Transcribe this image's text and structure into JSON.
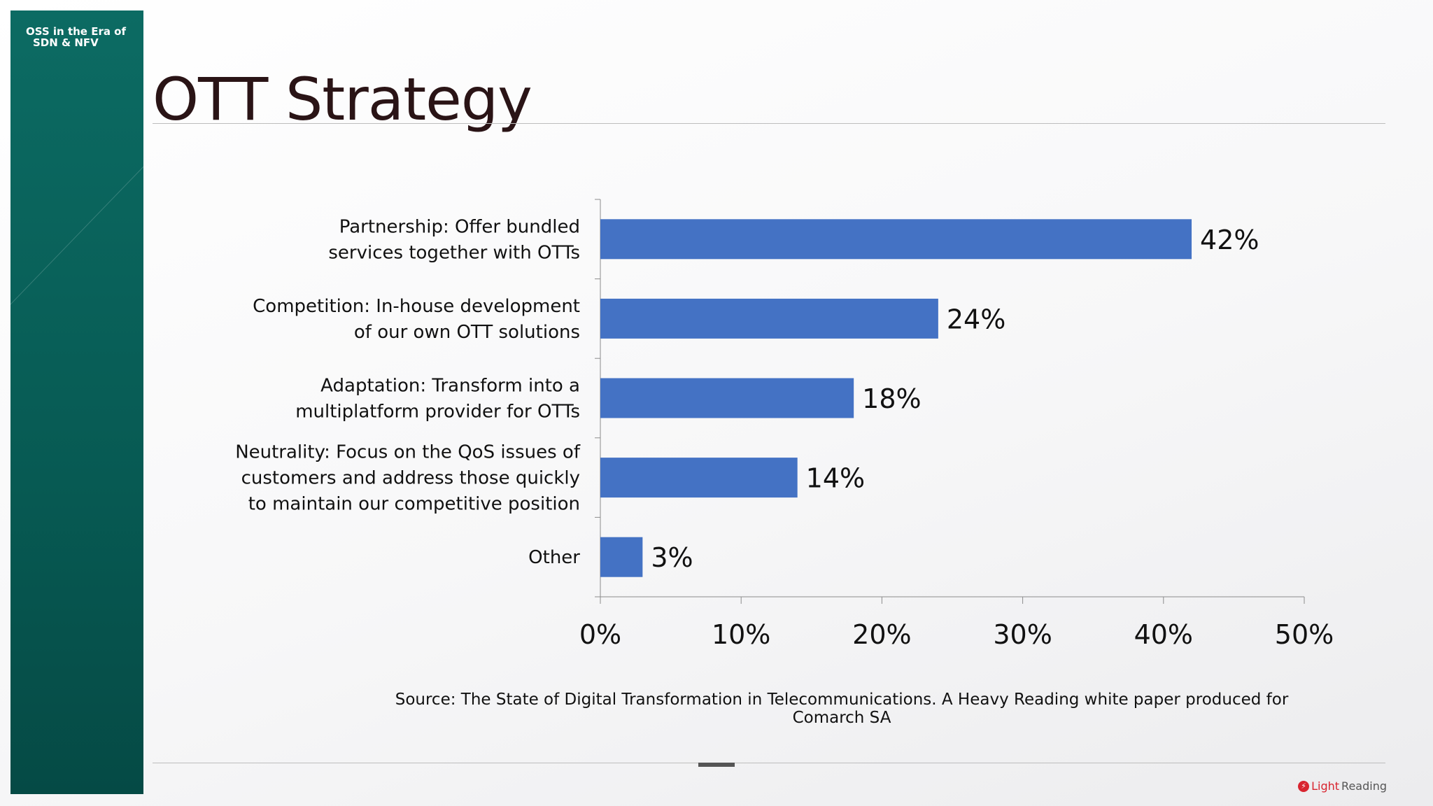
{
  "sidebar": {
    "title_line1": "OSS in the Era of",
    "title_line2": "SDN & NFV"
  },
  "slide": {
    "title": "OTT Strategy"
  },
  "source": "Source: The State of Digital Transformation in Telecommunications. A Heavy Reading white paper produced for Comarch SA",
  "brand": {
    "light": "Light",
    "reading": "Reading"
  },
  "colors": {
    "bar": "#4472c4",
    "sidebar": "#0c6b63",
    "brand": "#d8242f"
  },
  "chart_data": {
    "type": "bar",
    "orientation": "horizontal",
    "categories": [
      [
        "Partnership: Offer bundled",
        "services together with OTTs"
      ],
      [
        "Competition: In-house development",
        "of our own OTT solutions"
      ],
      [
        "Adaptation: Transform into a",
        "multiplatform provider for OTTs"
      ],
      [
        "Neutrality: Focus on the QoS issues of",
        "customers and address those quickly",
        "to maintain our competitive position"
      ],
      [
        "Other"
      ]
    ],
    "values": [
      42,
      24,
      18,
      14,
      3
    ],
    "value_labels": [
      "42%",
      "24%",
      "18%",
      "14%",
      "3%"
    ],
    "xlim": [
      0,
      50
    ],
    "xticks": [
      0,
      10,
      20,
      30,
      40,
      50
    ],
    "xtick_labels": [
      "0%",
      "10%",
      "20%",
      "30%",
      "40%",
      "50%"
    ],
    "grid": false,
    "legend": "none"
  }
}
